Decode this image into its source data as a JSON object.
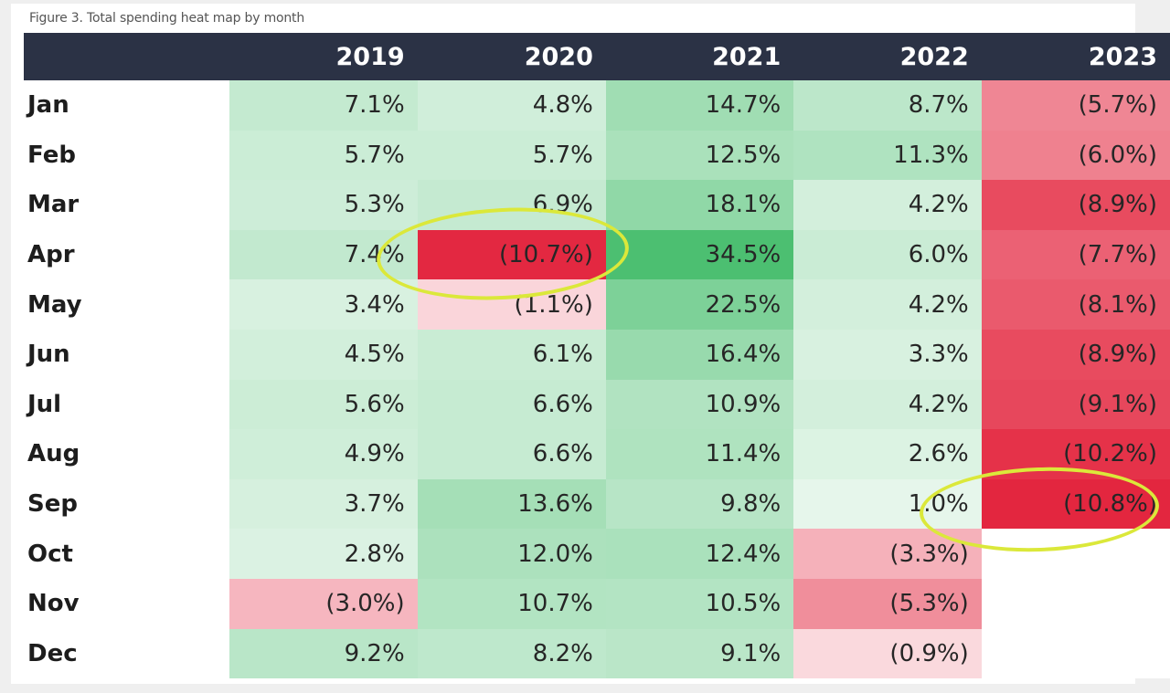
{
  "caption": "Figure 3. Total spending heat map by month",
  "chart_data": {
    "type": "heatmap",
    "title": "Figure 3. Total spending heat map by month",
    "years": [
      "2019",
      "2020",
      "2021",
      "2022",
      "2023"
    ],
    "months": [
      "Jan",
      "Feb",
      "Mar",
      "Apr",
      "May",
      "Jun",
      "Jul",
      "Aug",
      "Sep",
      "Oct",
      "Nov",
      "Dec"
    ],
    "values": [
      [
        7.1,
        4.8,
        14.7,
        8.7,
        -5.7
      ],
      [
        5.7,
        5.7,
        12.5,
        11.3,
        -6.0
      ],
      [
        5.3,
        6.9,
        18.1,
        4.2,
        -8.9
      ],
      [
        7.4,
        -10.7,
        34.5,
        6.0,
        -7.7
      ],
      [
        3.4,
        -1.1,
        22.5,
        4.2,
        -8.1
      ],
      [
        4.5,
        6.1,
        16.4,
        3.3,
        -8.9
      ],
      [
        5.6,
        6.6,
        10.9,
        4.2,
        -9.1
      ],
      [
        4.9,
        6.6,
        11.4,
        2.6,
        -10.2
      ],
      [
        3.7,
        13.6,
        9.8,
        1.0,
        -10.8
      ],
      [
        2.8,
        12.0,
        12.4,
        -3.3,
        null
      ],
      [
        -3.0,
        10.7,
        10.5,
        -5.3,
        null
      ],
      [
        9.2,
        8.2,
        9.1,
        -0.9,
        null
      ]
    ],
    "labels": [
      [
        "7.1%",
        "4.8%",
        "14.7%",
        "8.7%",
        "(5.7%)"
      ],
      [
        "5.7%",
        "5.7%",
        "12.5%",
        "11.3%",
        "(6.0%)"
      ],
      [
        "5.3%",
        "6.9%",
        "18.1%",
        "4.2%",
        "(8.9%)"
      ],
      [
        "7.4%",
        "(10.7%)",
        "34.5%",
        "6.0%",
        "(7.7%)"
      ],
      [
        "3.4%",
        "(1.1%)",
        "22.5%",
        "4.2%",
        "(8.1%)"
      ],
      [
        "4.5%",
        "6.1%",
        "16.4%",
        "3.3%",
        "(8.9%)"
      ],
      [
        "5.6%",
        "6.6%",
        "10.9%",
        "4.2%",
        "(9.1%)"
      ],
      [
        "4.9%",
        "6.6%",
        "11.4%",
        "2.6%",
        "(10.2%)"
      ],
      [
        "3.7%",
        "13.6%",
        "9.8%",
        "1.0%",
        "(10.8%)"
      ],
      [
        "2.8%",
        "12.0%",
        "12.4%",
        "(3.3%)",
        ""
      ],
      [
        "(3.0%)",
        "10.7%",
        "10.5%",
        "(5.3%)",
        ""
      ],
      [
        "9.2%",
        "8.2%",
        "9.1%",
        "(0.9%)",
        ""
      ]
    ],
    "color_scale": {
      "positive": "#2fb55a",
      "negative": "#e3263f",
      "neutral": "#ffffff",
      "max_positive": 34.5,
      "max_negative": 10.8
    },
    "highlighted_cells": [
      {
        "month": "Apr",
        "year": "2020"
      },
      {
        "month": "Sep",
        "year": "2023"
      }
    ],
    "highlight_color": "#dbe83a"
  },
  "colors": {
    "header_bg": "#2b3245",
    "header_text": "#ffffff"
  }
}
